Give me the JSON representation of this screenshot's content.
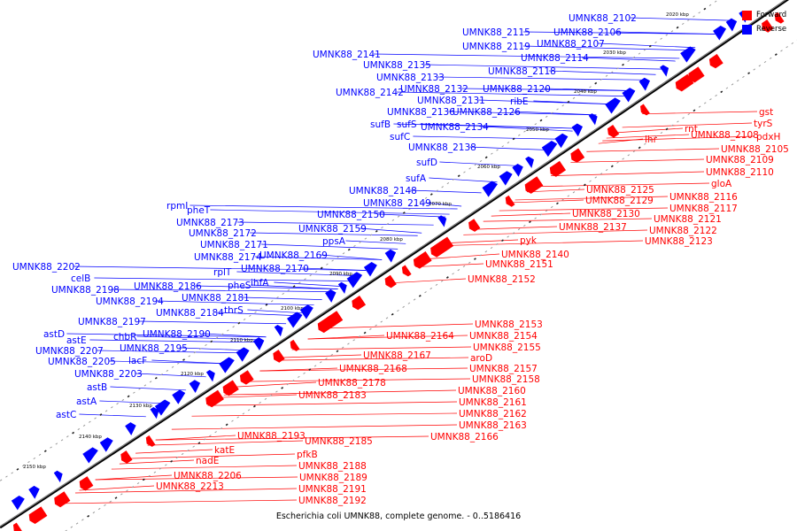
{
  "caption": "Escherichia coli UMNK88, complete genome. - 0..5186416",
  "colors": {
    "forward": "#ff0000",
    "reverse": "#0000ff",
    "backbone": "#000000"
  },
  "legend": [
    {
      "label": "Forward",
      "color": "#ff0000"
    },
    {
      "label": "Reverse",
      "color": "#0000ff"
    }
  ],
  "ticks": [
    "2020 kbp",
    "2030 kbp",
    "2040 kbp",
    "2050 kbp",
    "2060 kbp",
    "2070 kbp",
    "2080 kbp",
    "2090 kbp",
    "2100 kbp",
    "2110 kbp",
    "2120 kbp",
    "2130 kbp",
    "2140 kbp",
    "2150 kbp"
  ],
  "reverse_labels": [
    "UMNK88_2102",
    "UMNK88_2115",
    "UMNK88_2106",
    "UMNK88_2119",
    "UMNK88_2107",
    "UMNK88_2141",
    "UMNK88_2114",
    "UMNK88_2135",
    "UMNK88_2118",
    "UMNK88_2133",
    "UMNK88_2132",
    "UMNK88_2120",
    "UMNK88_2142",
    "UMNK88_2131",
    "ribE",
    "UMNK88_2136",
    "UMNK88_2126",
    "sufB",
    "sufS",
    "UMNK88_2134",
    "sufC",
    "UMNK88_2138",
    "sufD",
    "sufA",
    "UMNK88_2148",
    "UMNK88_2149",
    "rpmI",
    "pheT",
    "UMNK88_2150",
    "UMNK88_2173",
    "UMNK88_2159",
    "UMNK88_2172",
    "ppsA",
    "UMNK88_2171",
    "UMNK88_2174",
    "UMNK88_2169",
    "UMNK88_2202",
    "rplT",
    "UMNK88_2170",
    "celB",
    "UMNK88_2186",
    "pheS",
    "ihfA",
    "UMNK88_2198",
    "UMNK88_2181",
    "UMNK88_2194",
    "thrS",
    "UMNK88_2184",
    "UMNK88_2197",
    "astD",
    "chbR",
    "UMNK88_2190",
    "astE",
    "UMNK88_2195",
    "UMNK88_2207",
    "lacF",
    "UMNK88_2205",
    "UMNK88_2203",
    "astB",
    "astA",
    "astC"
  ],
  "forward_labels": [
    "gst",
    "tyrS",
    "rnt",
    "pdxH",
    "UMNK88_2108",
    "lhr",
    "UMNK88_2105",
    "UMNK88_2109",
    "UMNK88_2110",
    "gloA",
    "UMNK88_2125",
    "UMNK88_2116",
    "UMNK88_2129",
    "UMNK88_2117",
    "UMNK88_2130",
    "UMNK88_2121",
    "UMNK88_2122",
    "UMNK88_2137",
    "UMNK88_2123",
    "pyk",
    "UMNK88_2140",
    "UMNK88_2151",
    "UMNK88_2152",
    "UMNK88_2153",
    "UMNK88_2154",
    "UMNK88_2164",
    "UMNK88_2155",
    "UMNK88_2167",
    "aroD",
    "UMNK88_2157",
    "UMNK88_2168",
    "UMNK88_2158",
    "UMNK88_2178",
    "UMNK88_2160",
    "UMNK88_2183",
    "UMNK88_2161",
    "UMNK88_2162",
    "UMNK88_2163",
    "UMNK88_2166",
    "UMNK88_2193",
    "UMNK88_2185",
    "katE",
    "pfkB",
    "nadE",
    "UMNK88_2188",
    "UMNK88_2206",
    "UMNK88_2189",
    "UMNK88_2213",
    "UMNK88_2191",
    "UMNK88_2192"
  ]
}
